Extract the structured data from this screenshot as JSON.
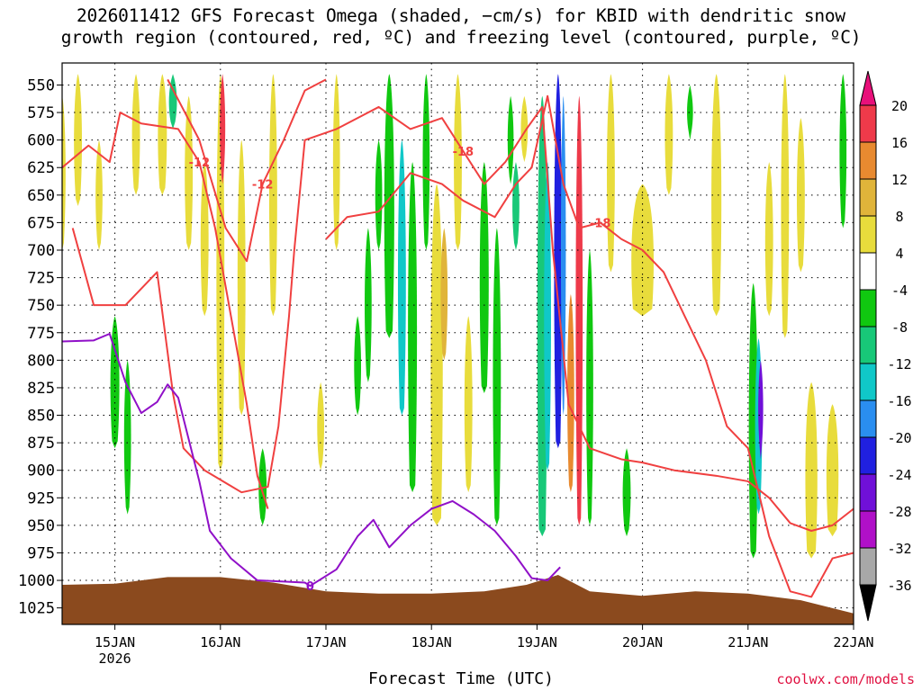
{
  "header": {
    "title_line1": "2026011412 GFS Forecast Omega (shaded, −cm/s) for KBID with dendritic snow",
    "title_line2": "growth region (contoured, red, ºC) and freezing level (contoured, purple, ºC)"
  },
  "footer": {
    "xaxis_title": "Forecast Time (UTC)",
    "credit": "coolwx.com/models"
  },
  "chart_data": {
    "type": "heatmap",
    "title": "2026011412 GFS Forecast Omega (shaded, −cm/s) for KBID with dendritic snow growth region (contoured, red, ºC) and freezing level (contoured, purple, ºC)",
    "xlabel": "Forecast Time (UTC)",
    "ylabel": "",
    "x_ticks": [
      {
        "t": 0.5,
        "label": "15JAN",
        "sub": "2026"
      },
      {
        "t": 1.5,
        "label": "16JAN",
        "sub": ""
      },
      {
        "t": 2.5,
        "label": "17JAN",
        "sub": ""
      },
      {
        "t": 3.5,
        "label": "18JAN",
        "sub": ""
      },
      {
        "t": 4.5,
        "label": "19JAN",
        "sub": ""
      },
      {
        "t": 5.5,
        "label": "20JAN",
        "sub": ""
      },
      {
        "t": 6.5,
        "label": "21JAN",
        "sub": ""
      },
      {
        "t": 7.5,
        "label": "22JAN",
        "sub": ""
      }
    ],
    "xlim": [
      0,
      7.5
    ],
    "y_ticks": [
      550,
      575,
      600,
      625,
      650,
      675,
      700,
      725,
      750,
      775,
      800,
      825,
      850,
      875,
      900,
      925,
      950,
      975,
      1000,
      1025
    ],
    "ylim": [
      530,
      1040
    ],
    "grid": true,
    "colorbar": {
      "ticks": [
        20,
        16,
        12,
        8,
        4,
        -4,
        -8,
        -12,
        -16,
        -20,
        -24,
        -28,
        -32,
        -36
      ],
      "bins": [
        {
          "range": "16-20",
          "color": "#ee3a4a"
        },
        {
          "range": "12-16",
          "color": "#e88a30"
        },
        {
          "range": "8-12",
          "color": "#e0b43a"
        },
        {
          "range": "4-8",
          "color": "#e8dc3c"
        },
        {
          "range": "-4-4",
          "color": "#ffffff"
        },
        {
          "range": "-8--4",
          "color": "#10c810"
        },
        {
          "range": "-12--8",
          "color": "#18c878"
        },
        {
          "range": "-16--12",
          "color": "#10c8c8"
        },
        {
          "range": "-20--16",
          "color": "#2a8ef0"
        },
        {
          "range": "-24--20",
          "color": "#2020e0"
        },
        {
          "range": "-28--24",
          "color": "#7010d8"
        },
        {
          "range": "-32--28",
          "color": "#b010c8"
        },
        {
          "range": "-36--32",
          "color": "#a8a8a8"
        }
      ],
      "top_arrow_color": "#e8107a",
      "bottom_arrow_color": "#000000"
    },
    "terrain_color": "#8b4a1e",
    "terrain": [
      [
        0,
        1004
      ],
      [
        0.5,
        1003
      ],
      [
        1,
        997
      ],
      [
        1.5,
        997
      ],
      [
        2,
        1002
      ],
      [
        2.5,
        1010
      ],
      [
        3,
        1012
      ],
      [
        3.5,
        1012
      ],
      [
        4,
        1010
      ],
      [
        4.4,
        1004
      ],
      [
        4.7,
        995
      ],
      [
        5,
        1010
      ],
      [
        5.5,
        1014
      ],
      [
        6,
        1010
      ],
      [
        6.5,
        1012
      ],
      [
        7,
        1018
      ],
      [
        7.5,
        1030
      ]
    ],
    "freezing_level": {
      "label": "0",
      "color": "#9010c8",
      "points": [
        [
          0,
          783
        ],
        [
          0.3,
          782
        ],
        [
          0.45,
          776
        ],
        [
          0.6,
          820
        ],
        [
          0.75,
          848
        ],
        [
          0.9,
          838
        ],
        [
          1,
          822
        ],
        [
          1.1,
          834
        ],
        [
          1.3,
          910
        ],
        [
          1.4,
          955
        ],
        [
          1.6,
          980
        ],
        [
          1.85,
          1000
        ],
        [
          2.3,
          1002
        ],
        [
          2.35,
          1005
        ],
        [
          2.6,
          990
        ],
        [
          2.8,
          960
        ],
        [
          2.95,
          945
        ],
        [
          3.1,
          970
        ],
        [
          3.3,
          950
        ],
        [
          3.5,
          935
        ],
        [
          3.7,
          928
        ],
        [
          3.9,
          940
        ],
        [
          4.1,
          955
        ],
        [
          4.3,
          978
        ],
        [
          4.45,
          998
        ],
        [
          4.6,
          1000
        ],
        [
          4.72,
          988
        ]
      ]
    },
    "dgz_contours": [
      {
        "label": "-12",
        "color": "#f04040",
        "points": [
          [
            0,
            625
          ],
          [
            0.25,
            605
          ],
          [
            0.45,
            620
          ],
          [
            0.55,
            575
          ],
          [
            0.75,
            585
          ],
          [
            1.1,
            590
          ],
          [
            1.3,
            620
          ],
          [
            1.45,
            680
          ],
          [
            1.6,
            760
          ],
          [
            1.75,
            840
          ],
          [
            1.85,
            905
          ],
          [
            1.95,
            935
          ]
        ]
      },
      {
        "label": "-12",
        "color": "#f04040",
        "points": [
          [
            1.0,
            545
          ],
          [
            1.3,
            600
          ],
          [
            1.55,
            680
          ],
          [
            1.75,
            710
          ],
          [
            1.9,
            640
          ],
          [
            2.1,
            600
          ],
          [
            2.3,
            555
          ],
          [
            2.5,
            545
          ]
        ]
      },
      {
        "label": "-18",
        "color": "#f04040",
        "points": [
          [
            0.1,
            680
          ],
          [
            0.3,
            750
          ],
          [
            0.6,
            750
          ],
          [
            0.9,
            720
          ],
          [
            1.05,
            830
          ],
          [
            1.15,
            880
          ],
          [
            1.35,
            900
          ],
          [
            1.7,
            920
          ],
          [
            1.95,
            915
          ],
          [
            2.05,
            860
          ],
          [
            2.15,
            760
          ],
          [
            2.2,
            700
          ],
          [
            2.3,
            600
          ],
          [
            2.6,
            590
          ],
          [
            3.0,
            570
          ],
          [
            3.3,
            590
          ],
          [
            3.6,
            580
          ],
          [
            3.8,
            610
          ],
          [
            4.0,
            640
          ],
          [
            4.2,
            620
          ],
          [
            4.4,
            590
          ],
          [
            4.55,
            570
          ],
          [
            4.65,
            700
          ],
          [
            4.8,
            840
          ],
          [
            5.0,
            880
          ],
          [
            5.3,
            890
          ],
          [
            5.5,
            893
          ],
          [
            5.8,
            900
          ],
          [
            6.2,
            905
          ],
          [
            6.5,
            910
          ],
          [
            6.7,
            925
          ],
          [
            6.9,
            948
          ],
          [
            7.1,
            955
          ],
          [
            7.3,
            950
          ],
          [
            7.5,
            935
          ]
        ]
      },
      {
        "label": "-18",
        "color": "#f04040",
        "points": [
          [
            2.5,
            690
          ],
          [
            2.7,
            670
          ],
          [
            3.0,
            665
          ],
          [
            3.3,
            630
          ],
          [
            3.6,
            640
          ],
          [
            3.8,
            655
          ],
          [
            4.1,
            670
          ],
          [
            4.3,
            640
          ],
          [
            4.45,
            625
          ],
          [
            4.6,
            560
          ],
          [
            4.75,
            640
          ],
          [
            4.9,
            680
          ],
          [
            5.1,
            675
          ],
          [
            5.3,
            690
          ],
          [
            5.5,
            700
          ],
          [
            5.7,
            720
          ],
          [
            5.9,
            760
          ],
          [
            6.1,
            800
          ],
          [
            6.3,
            860
          ],
          [
            6.5,
            880
          ],
          [
            6.7,
            960
          ],
          [
            6.9,
            1010
          ],
          [
            7.1,
            1015
          ],
          [
            7.3,
            980
          ],
          [
            7.5,
            975
          ]
        ]
      }
    ],
    "omega_bands": [
      {
        "t": 0.0,
        "w": 0.05,
        "p1": 560,
        "p2": 700,
        "value": 5
      },
      {
        "t": 0.15,
        "w": 0.06,
        "p1": 540,
        "p2": 660,
        "value": 5
      },
      {
        "t": 0.35,
        "w": 0.05,
        "p1": 600,
        "p2": 700,
        "value": 5
      },
      {
        "t": 0.5,
        "w": 0.07,
        "p1": 760,
        "p2": 880,
        "value": -6
      },
      {
        "t": 0.62,
        "w": 0.05,
        "p1": 800,
        "p2": 940,
        "value": -6
      },
      {
        "t": 0.7,
        "w": 0.06,
        "p1": 540,
        "p2": 650,
        "value": 5
      },
      {
        "t": 0.95,
        "w": 0.07,
        "p1": 540,
        "p2": 650,
        "value": 5
      },
      {
        "t": 1.05,
        "w": 0.06,
        "p1": 540,
        "p2": 590,
        "value": -10
      },
      {
        "t": 1.2,
        "w": 0.06,
        "p1": 560,
        "p2": 700,
        "value": 5
      },
      {
        "t": 1.35,
        "w": 0.06,
        "p1": 620,
        "p2": 760,
        "value": 5
      },
      {
        "t": 1.5,
        "w": 0.06,
        "p1": 540,
        "p2": 900,
        "value": 5
      },
      {
        "t": 1.52,
        "w": 0.035,
        "p1": 540,
        "p2": 640,
        "value": 18
      },
      {
        "t": 1.7,
        "w": 0.06,
        "p1": 600,
        "p2": 850,
        "value": 5
      },
      {
        "t": 1.9,
        "w": 0.06,
        "p1": 880,
        "p2": 950,
        "value": -6
      },
      {
        "t": 2.0,
        "w": 0.06,
        "p1": 540,
        "p2": 760,
        "value": 5
      },
      {
        "t": 2.45,
        "w": 0.05,
        "p1": 820,
        "p2": 900,
        "value": 5
      },
      {
        "t": 2.6,
        "w": 0.05,
        "p1": 540,
        "p2": 700,
        "value": 5
      },
      {
        "t": 2.8,
        "w": 0.05,
        "p1": 760,
        "p2": 850,
        "value": -6
      },
      {
        "t": 2.9,
        "w": 0.05,
        "p1": 680,
        "p2": 820,
        "value": -6
      },
      {
        "t": 3.0,
        "w": 0.05,
        "p1": 600,
        "p2": 700,
        "value": -6
      },
      {
        "t": 3.1,
        "w": 0.08,
        "p1": 540,
        "p2": 780,
        "value": -6
      },
      {
        "t": 3.22,
        "w": 0.06,
        "p1": 600,
        "p2": 850,
        "value": -14
      },
      {
        "t": 3.32,
        "w": 0.07,
        "p1": 620,
        "p2": 920,
        "value": -6
      },
      {
        "t": 3.45,
        "w": 0.05,
        "p1": 540,
        "p2": 700,
        "value": -6
      },
      {
        "t": 3.55,
        "w": 0.1,
        "p1": 640,
        "p2": 950,
        "value": 5
      },
      {
        "t": 3.62,
        "w": 0.05,
        "p1": 680,
        "p2": 800,
        "value": 10
      },
      {
        "t": 3.75,
        "w": 0.06,
        "p1": 540,
        "p2": 700,
        "value": 5
      },
      {
        "t": 3.85,
        "w": 0.06,
        "p1": 760,
        "p2": 920,
        "value": 5
      },
      {
        "t": 4.0,
        "w": 0.07,
        "p1": 620,
        "p2": 830,
        "value": -6
      },
      {
        "t": 4.12,
        "w": 0.06,
        "p1": 680,
        "p2": 950,
        "value": -6
      },
      {
        "t": 4.25,
        "w": 0.04,
        "p1": 560,
        "p2": 640,
        "value": -6
      },
      {
        "t": 4.3,
        "w": 0.05,
        "p1": 620,
        "p2": 700,
        "value": -10
      },
      {
        "t": 4.38,
        "w": 0.05,
        "p1": 560,
        "p2": 620,
        "value": 5
      },
      {
        "t": 4.55,
        "w": 0.08,
        "p1": 560,
        "p2": 960,
        "value": -10
      },
      {
        "t": 4.6,
        "w": 0.05,
        "p1": 620,
        "p2": 900,
        "value": -14
      },
      {
        "t": 4.7,
        "w": 0.06,
        "p1": 540,
        "p2": 880,
        "value": -22
      },
      {
        "t": 4.75,
        "w": 0.03,
        "p1": 560,
        "p2": 850,
        "value": -18
      },
      {
        "t": 4.82,
        "w": 0.05,
        "p1": 740,
        "p2": 920,
        "value": 14
      },
      {
        "t": 4.9,
        "w": 0.05,
        "p1": 560,
        "p2": 950,
        "value": 18
      },
      {
        "t": 5.0,
        "w": 0.05,
        "p1": 700,
        "p2": 950,
        "value": -6
      },
      {
        "t": 5.2,
        "w": 0.06,
        "p1": 540,
        "p2": 720,
        "value": 5
      },
      {
        "t": 5.35,
        "w": 0.06,
        "p1": 880,
        "p2": 960,
        "value": -6
      },
      {
        "t": 5.5,
        "w": 0.2,
        "p1": 640,
        "p2": 760,
        "value": 5
      },
      {
        "t": 5.75,
        "w": 0.06,
        "p1": 540,
        "p2": 650,
        "value": 5
      },
      {
        "t": 5.95,
        "w": 0.04,
        "p1": 550,
        "p2": 600,
        "value": -6
      },
      {
        "t": 6.2,
        "w": 0.08,
        "p1": 540,
        "p2": 760,
        "value": 5
      },
      {
        "t": 6.55,
        "w": 0.07,
        "p1": 730,
        "p2": 980,
        "value": -6
      },
      {
        "t": 6.6,
        "w": 0.05,
        "p1": 780,
        "p2": 940,
        "value": -14
      },
      {
        "t": 6.62,
        "w": 0.03,
        "p1": 800,
        "p2": 890,
        "value": -24
      },
      {
        "t": 6.7,
        "w": 0.06,
        "p1": 620,
        "p2": 760,
        "value": 5
      },
      {
        "t": 6.85,
        "w": 0.06,
        "p1": 540,
        "p2": 780,
        "value": 5
      },
      {
        "t": 7.0,
        "w": 0.06,
        "p1": 580,
        "p2": 720,
        "value": 5
      },
      {
        "t": 7.1,
        "w": 0.1,
        "p1": 820,
        "p2": 980,
        "value": 5
      },
      {
        "t": 7.3,
        "w": 0.1,
        "p1": 840,
        "p2": 960,
        "value": 5
      },
      {
        "t": 7.4,
        "w": 0.05,
        "p1": 540,
        "p2": 680,
        "value": -6
      }
    ]
  }
}
